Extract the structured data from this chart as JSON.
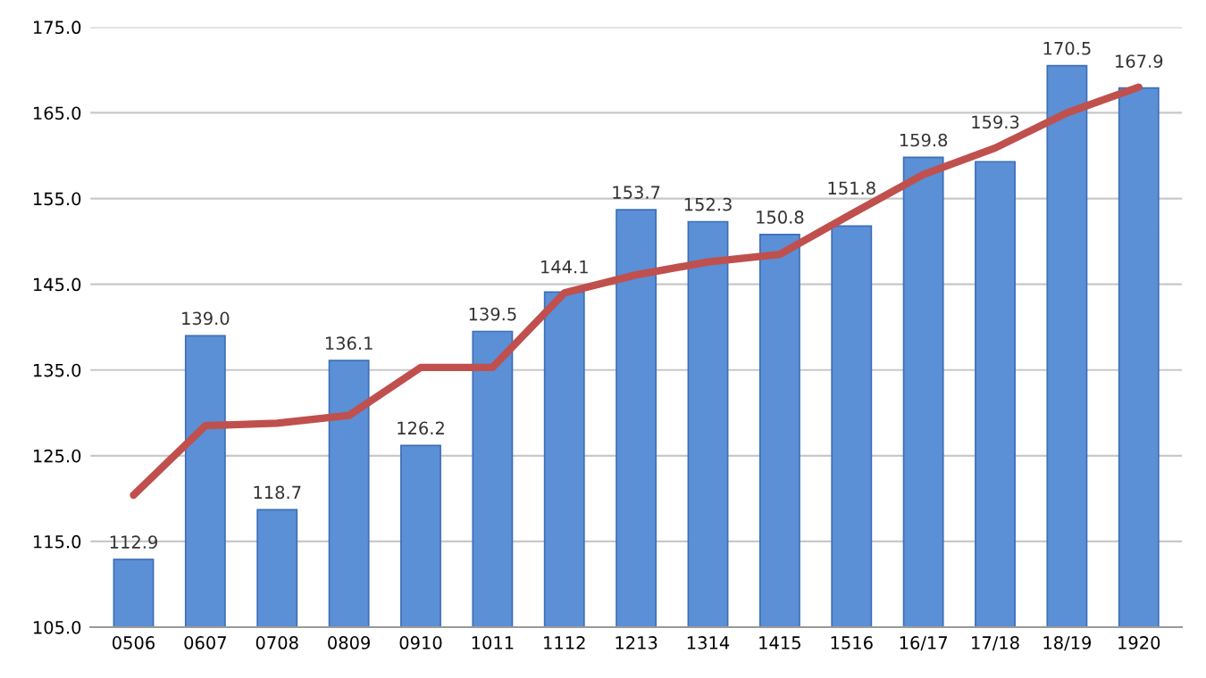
{
  "chart_data": {
    "type": "bar",
    "categories": [
      "0506",
      "0607",
      "0708",
      "0809",
      "0910",
      "1011",
      "1112",
      "1213",
      "1314",
      "1415",
      "1516",
      "16/17",
      "17/18",
      "18/19",
      "1920"
    ],
    "series": [
      {
        "type": "bar",
        "color": "#5b8fd6",
        "values": [
          112.9,
          139.0,
          118.7,
          136.1,
          126.2,
          139.5,
          144.1,
          153.7,
          152.3,
          150.8,
          151.8,
          159.8,
          159.3,
          170.5,
          167.9
        ],
        "value_labels": [
          "112.9",
          "139.0",
          "118.7",
          "136.1",
          "126.2",
          "139.5",
          "144.1",
          "153.7",
          "152.3",
          "150.8",
          "151.8",
          "159.8",
          "159.3",
          "170.5",
          "167.9"
        ]
      },
      {
        "type": "line",
        "color": "#c0504d",
        "values": [
          120.4,
          128.5,
          128.8,
          129.7,
          135.3,
          135.3,
          144.0,
          146.1,
          147.6,
          148.5,
          153.2,
          157.8,
          160.9,
          165.0,
          168.0
        ]
      }
    ],
    "ylim": [
      105,
      175
    ],
    "yticks": [
      {
        "value": 105,
        "label": "105.0"
      },
      {
        "value": 115,
        "label": "115.0"
      },
      {
        "value": 125,
        "label": "125.0"
      },
      {
        "value": 135,
        "label": "135.0"
      },
      {
        "value": 145,
        "label": "145.0"
      },
      {
        "value": 155,
        "label": "155.0"
      },
      {
        "value": 165,
        "label": "165.0"
      },
      {
        "value": 175,
        "label": "175.0"
      }
    ],
    "grid": "y",
    "marker": "none",
    "line_style": "solid"
  }
}
